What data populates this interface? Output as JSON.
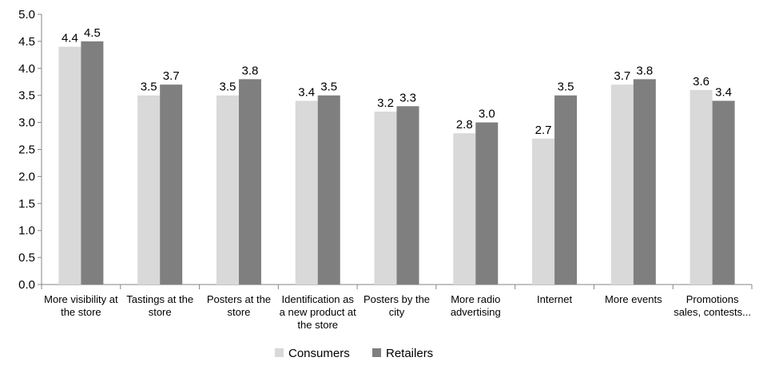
{
  "chart_data": {
    "type": "bar",
    "title": "",
    "xlabel": "",
    "ylabel": "",
    "ylim": [
      0,
      5.0
    ],
    "yticks": [
      "0.0",
      "0.5",
      "1.0",
      "1.5",
      "2.0",
      "2.5",
      "3.0",
      "3.5",
      "4.0",
      "4.5",
      "5.0"
    ],
    "grid": false,
    "legend_position": "bottom",
    "categories": [
      [
        "More visibility at",
        "the store"
      ],
      [
        "Tastings at the",
        "store"
      ],
      [
        "Posters at the",
        "store"
      ],
      [
        "Identification as",
        "a new product at",
        "the store"
      ],
      [
        "Posters by the",
        "city"
      ],
      [
        "More radio",
        "advertising"
      ],
      [
        "Internet"
      ],
      [
        "More events"
      ],
      [
        "Promotions",
        "sales, contests..."
      ]
    ],
    "series": [
      {
        "name": "Consumers",
        "color": "#d9d9d9",
        "values": [
          4.4,
          3.5,
          3.5,
          3.4,
          3.2,
          2.8,
          2.7,
          3.7,
          3.6
        ],
        "labels": [
          "4.4",
          "3.5",
          "3.5",
          "3.4",
          "3.2",
          "2.8",
          "2.7",
          "3.7",
          "3.6"
        ]
      },
      {
        "name": "Retailers",
        "color": "#7f7f7f",
        "values": [
          4.5,
          3.7,
          3.8,
          3.5,
          3.3,
          3.0,
          3.5,
          3.8,
          3.4
        ],
        "labels": [
          "4.5",
          "3.7",
          "3.8",
          "3.5",
          "3.3",
          "3.0",
          "3.5",
          "3.8",
          "3.4"
        ]
      }
    ]
  }
}
